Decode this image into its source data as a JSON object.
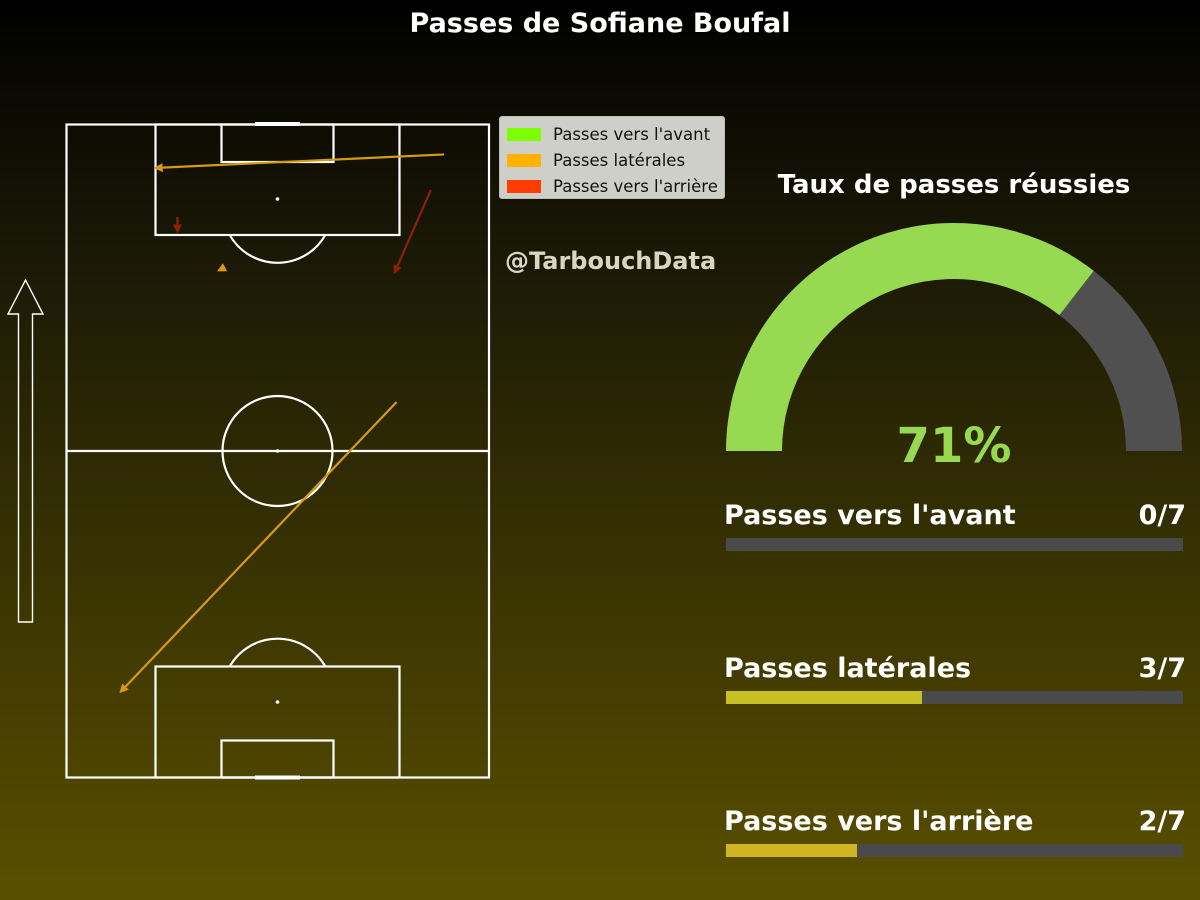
{
  "title": "Passes de Sofiane Boufal",
  "watermark": "@TarbouchData",
  "chart_data": [
    {
      "type": "pass-map",
      "legend": [
        {
          "label": "Passes vers l'avant",
          "color": "#7cff00"
        },
        {
          "label": "Passes latérales",
          "color": "#ffb300"
        },
        {
          "label": "Passes vers l'arrière",
          "color": "#ff3d00"
        }
      ],
      "pitch": {
        "length": 120,
        "width": 80
      },
      "passes": [
        {
          "type": "lateral",
          "color": "#d89a12",
          "from": [
            69,
            62.5
          ],
          "to": [
            15.5,
            10
          ]
        },
        {
          "type": "lateral",
          "color": "#d89a12",
          "from": [
            114.5,
            71.5
          ],
          "to": [
            112,
            16.5
          ]
        },
        {
          "type": "lateral",
          "color": "#d89a12",
          "from": [
            93.5,
            29.5
          ],
          "to": [
            93,
            28.5
          ]
        },
        {
          "type": "backward",
          "color": "#8c2204",
          "from": [
            103,
            21
          ],
          "to": [
            100,
            21
          ]
        },
        {
          "type": "backward",
          "color": "#8c2204",
          "from": [
            108,
            69
          ],
          "to": [
            92.5,
            62
          ]
        }
      ],
      "direction_arrow": "up"
    },
    {
      "type": "gauge",
      "title": "Taux de passes réussies",
      "value": 71,
      "value_label": "71%",
      "fill_color": "#98d952",
      "track_color": "#505050",
      "range": [
        0,
        100
      ]
    },
    {
      "type": "bar",
      "series": [
        {
          "label": "Passes vers l'avant",
          "count_label": "0/7",
          "made": 0,
          "total": 7,
          "color": "#c9c020"
        },
        {
          "label": "Passes latérales",
          "count_label": "3/7",
          "made": 3,
          "total": 7,
          "color": "#c7c024"
        },
        {
          "label": "Passes vers l'arrière",
          "count_label": "2/7",
          "made": 2,
          "total": 7,
          "color": "#d0b421"
        }
      ]
    }
  ]
}
